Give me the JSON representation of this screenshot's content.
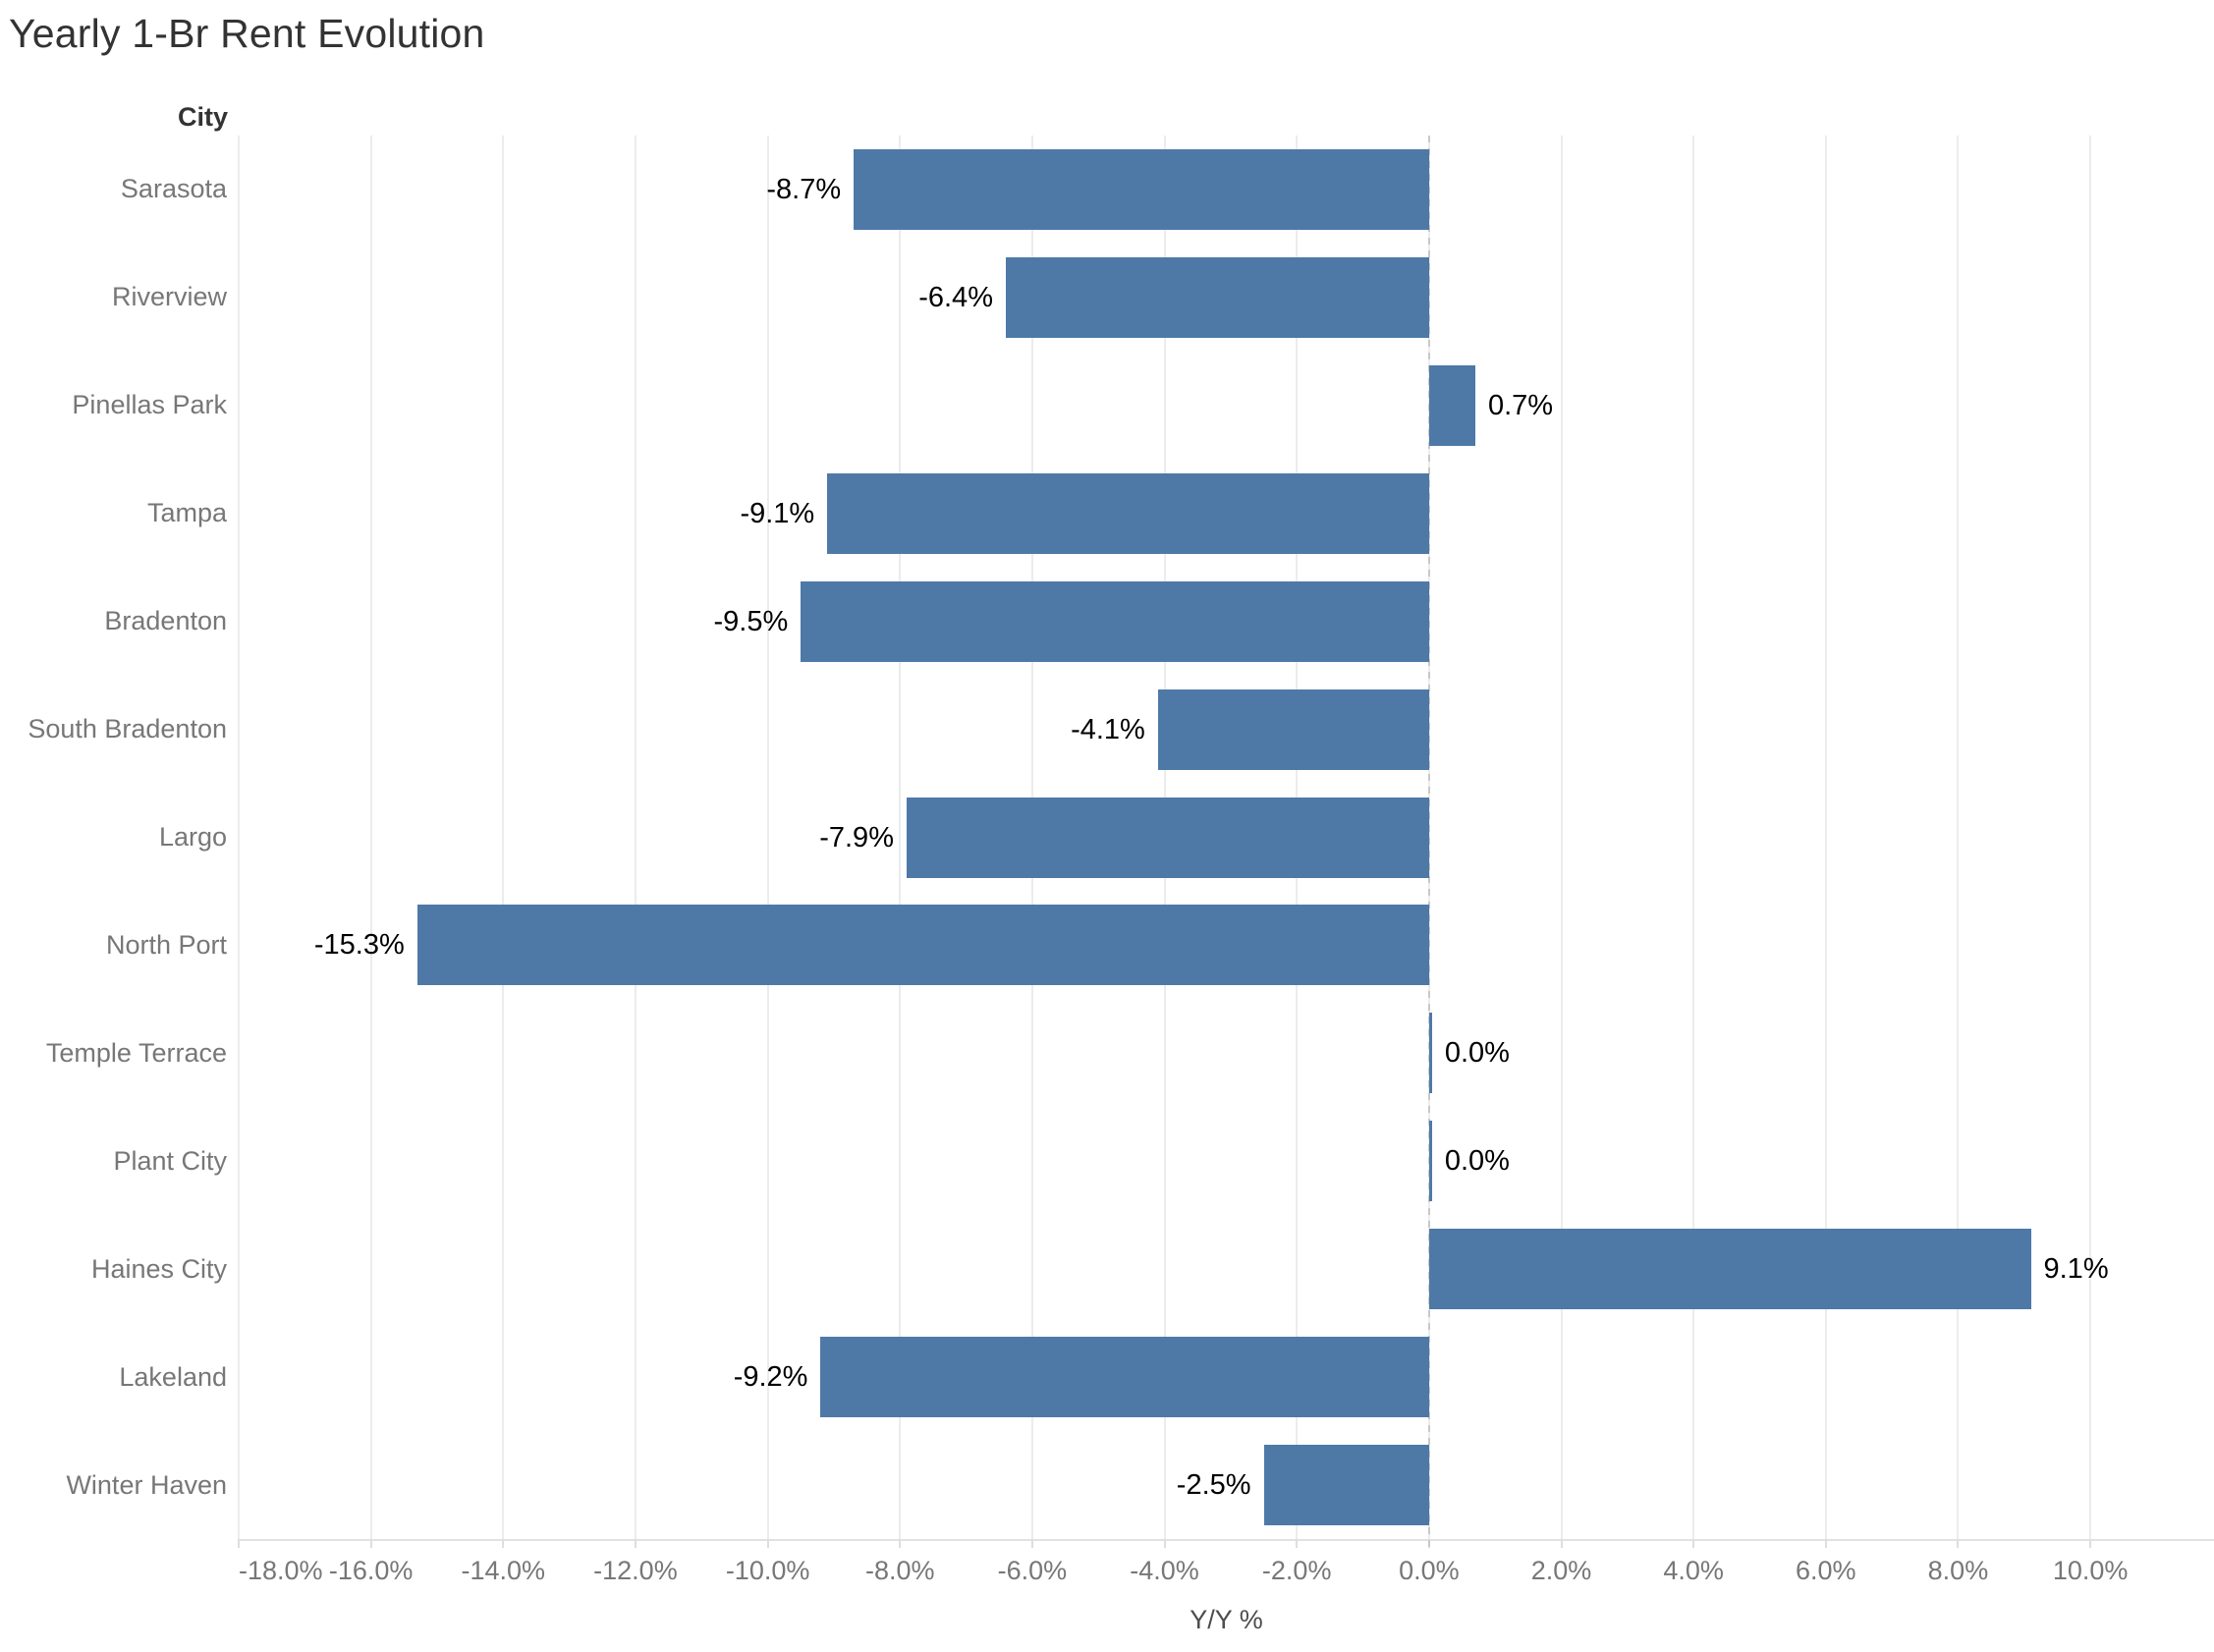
{
  "title": "Yearly 1-Br Rent Evolution",
  "row_axis_title": "City",
  "colors": {
    "bar": "#4e79a7",
    "gridline": "#ececec",
    "axis_line": "#e1e1e1",
    "tick": "#dedede",
    "zero_line": "#c9c9c9",
    "muted_label": "#777777",
    "value_label": "#000000",
    "title_color": "#333333"
  },
  "chart_data": {
    "type": "bar",
    "orientation": "horizontal",
    "title": "Yearly 1-Br Rent Evolution",
    "xlabel": "Y/Y %",
    "ylabel": "City",
    "xlim": [
      -18,
      11.87
    ],
    "grid": "vertical",
    "legend": "none",
    "x_ticks": [
      -18,
      -16,
      -14,
      -12,
      -10,
      -8,
      -6,
      -4,
      -2,
      0,
      2,
      4,
      6,
      8,
      10
    ],
    "x_tick_labels": [
      "-18.0%",
      "-16.0%",
      "-14.0%",
      "-12.0%",
      "-10.0%",
      "-8.0%",
      "-6.0%",
      "-4.0%",
      "-2.0%",
      "0.0%",
      "2.0%",
      "4.0%",
      "6.0%",
      "8.0%",
      "10.0%"
    ],
    "categories": [
      "Sarasota",
      "Riverview",
      "Pinellas Park",
      "Tampa",
      "Bradenton",
      "South Bradenton",
      "Largo",
      "North Port",
      "Temple Terrace",
      "Plant City",
      "Haines City",
      "Lakeland",
      "Winter Haven"
    ],
    "values": [
      -8.7,
      -6.4,
      0.7,
      -9.1,
      -9.5,
      -4.1,
      -7.9,
      -15.3,
      0.0,
      0.0,
      9.1,
      -9.2,
      -2.5
    ],
    "value_labels": [
      "-8.7%",
      "-6.4%",
      "0.7%",
      "-9.1%",
      "-9.5%",
      "-4.1%",
      "-7.9%",
      "-15.3%",
      "0.0%",
      "0.0%",
      "9.1%",
      "-9.2%",
      "-2.5%"
    ]
  }
}
